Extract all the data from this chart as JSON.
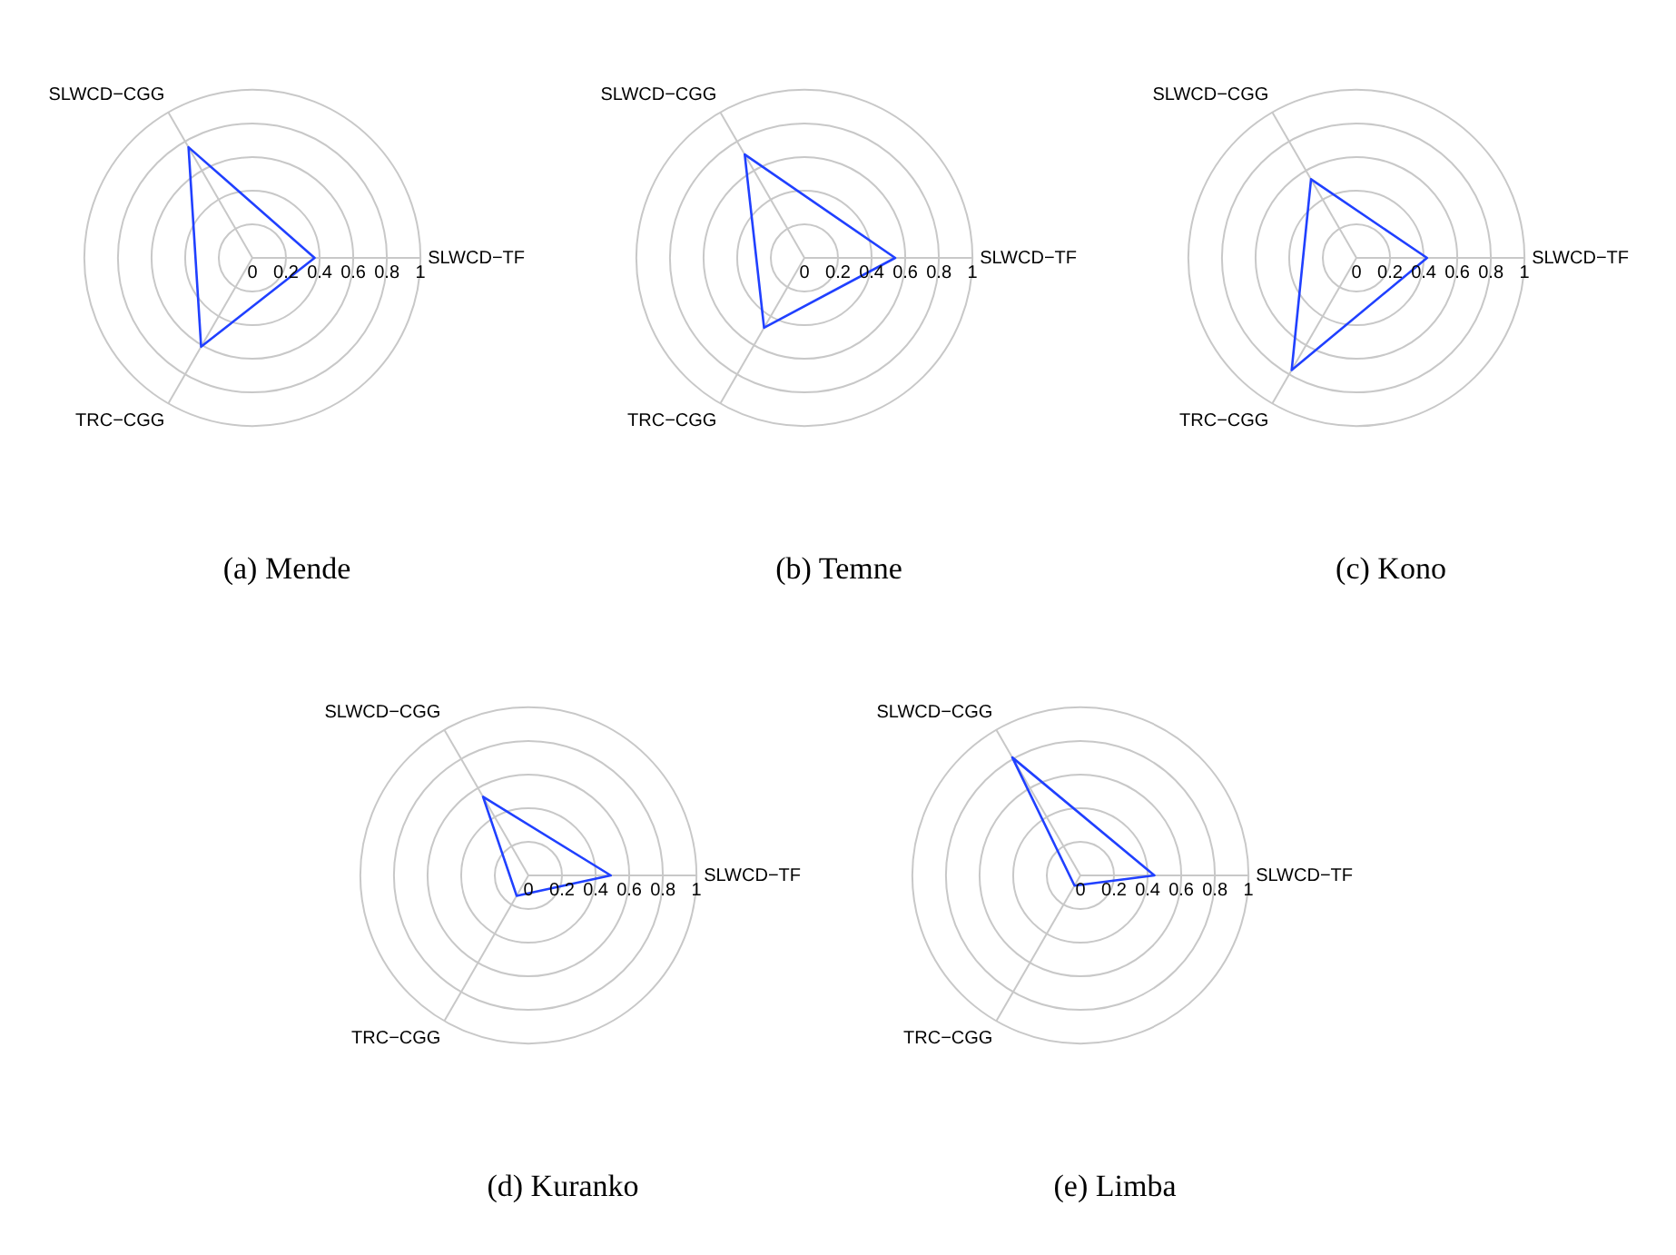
{
  "chart_data": [
    {
      "type": "radar",
      "title": "(a) Mende",
      "categories": [
        "SLWCD−TF",
        "TRC−CGG",
        "SLWCD−CGG"
      ],
      "series": [
        {
          "color": "#2040ff",
          "values": [
            0.37,
            0.61,
            0.76
          ]
        }
      ],
      "ylim": [
        0,
        1
      ],
      "yticks": [
        0,
        0.2,
        0.4,
        0.6,
        0.8,
        1
      ],
      "grid": true,
      "marker": "none"
    },
    {
      "type": "radar",
      "title": "(b) Temne",
      "categories": [
        "SLWCD−TF",
        "TRC−CGG",
        "SLWCD−CGG"
      ],
      "series": [
        {
          "color": "#2040ff",
          "values": [
            0.54,
            0.48,
            0.71
          ]
        }
      ],
      "ylim": [
        0,
        1
      ],
      "yticks": [
        0,
        0.2,
        0.4,
        0.6,
        0.8,
        1
      ],
      "grid": true,
      "marker": "none"
    },
    {
      "type": "radar",
      "title": "(c) Kono",
      "categories": [
        "SLWCD−TF",
        "TRC−CGG",
        "SLWCD−CGG"
      ],
      "series": [
        {
          "color": "#2040ff",
          "values": [
            0.42,
            0.77,
            0.54
          ]
        }
      ],
      "ylim": [
        0,
        1
      ],
      "yticks": [
        0,
        0.2,
        0.4,
        0.6,
        0.8,
        1
      ],
      "grid": true,
      "marker": "none"
    },
    {
      "type": "radar",
      "title": "(d) Kuranko",
      "categories": [
        "SLWCD−TF",
        "TRC−CGG",
        "SLWCD−CGG"
      ],
      "series": [
        {
          "color": "#2040ff",
          "values": [
            0.49,
            0.14,
            0.54
          ]
        }
      ],
      "ylim": [
        0,
        1
      ],
      "yticks": [
        0,
        0.2,
        0.4,
        0.6,
        0.8,
        1
      ],
      "grid": true,
      "marker": "none"
    },
    {
      "type": "radar",
      "title": "(e) Limba",
      "categories": [
        "SLWCD−TF",
        "TRC−CGG",
        "SLWCD−CGG"
      ],
      "series": [
        {
          "color": "#2040ff",
          "values": [
            0.44,
            0.07,
            0.81
          ]
        }
      ],
      "ylim": [
        0,
        1
      ],
      "yticks": [
        0,
        0.2,
        0.4,
        0.6,
        0.8,
        1
      ],
      "grid": true,
      "marker": "none"
    }
  ]
}
